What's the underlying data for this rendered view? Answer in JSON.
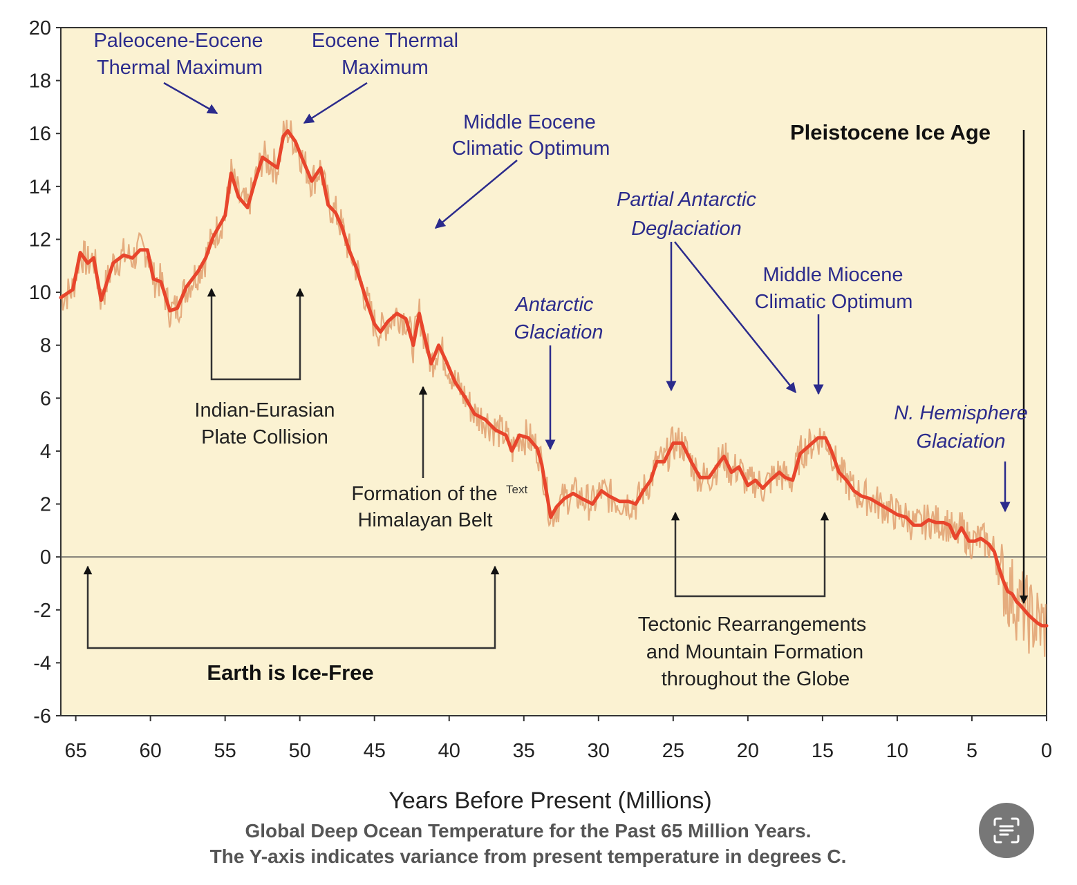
{
  "chart_data": {
    "type": "line",
    "title": "Global Deep Ocean Temperature for the Past 65 Million Years.",
    "subtitle": "The Y-axis indicates variance from present temperature in degrees C.",
    "xlabel": "Years Before Present (Millions)",
    "ylabel": "",
    "xlim": [
      66,
      0
    ],
    "ylim": [
      -6,
      20
    ],
    "x_reversed": true,
    "grid": false,
    "x_ticks": [
      65,
      60,
      55,
      50,
      45,
      40,
      35,
      30,
      25,
      20,
      15,
      10,
      5,
      0
    ],
    "y_ticks": [
      20,
      18,
      16,
      14,
      12,
      10,
      8,
      6,
      4,
      2,
      0,
      -2,
      -4,
      -6
    ],
    "colors": {
      "smoothed": "#e8452c",
      "raw": "#e0a070",
      "plot_background": "#fbf2d2",
      "annotation_blue": "#2b2b8c"
    },
    "series": [
      {
        "style": "smoothed",
        "x": [
          66,
          65.2,
          64.7,
          64.2,
          63.8,
          63.3,
          62.5,
          61.8,
          61.2,
          60.7,
          60.2,
          59.8,
          59.3,
          58.7,
          58.2,
          57.6,
          56.8,
          56.3,
          55.8,
          55.4,
          55,
          54.6,
          54.1,
          53.5,
          53,
          52.5,
          52,
          51.5,
          51.1,
          50.8,
          50.3,
          49.8,
          49.2,
          48.6,
          48.1,
          47.6,
          47.2,
          46.7,
          46.2,
          45.6,
          45,
          44.6,
          44.1,
          43.5,
          42.9,
          42.4,
          42,
          41.6,
          41.2,
          40.7,
          40.2,
          39.6,
          38.9,
          38.3,
          37.6,
          36.9,
          36.2,
          35.8,
          35.3,
          34.7,
          34.1,
          33.8,
          33.5,
          33.2,
          32.8,
          32.3,
          31.7,
          31.1,
          30.4,
          29.8,
          29.3,
          28.6,
          28,
          27.5,
          27,
          26.5,
          26.1,
          25.6,
          25,
          24.4,
          23.8,
          23.2,
          22.6,
          22,
          21.6,
          21.1,
          20.6,
          20,
          19.5,
          19,
          18.5,
          17.9,
          17.5,
          17,
          16.5,
          15.9,
          15.3,
          14.8,
          14.4,
          13.9,
          13.4,
          12.9,
          12.4,
          11.8,
          11.2,
          10.6,
          10,
          9.4,
          8.9,
          8.4,
          7.9,
          7.4,
          6.9,
          6.5,
          6.1,
          5.7,
          5.2,
          4.8,
          4.4,
          3.9,
          3.5,
          3.2,
          2.9,
          2.6,
          2.3,
          2,
          1.8,
          1.5,
          1.2,
          1,
          0.6,
          0.3,
          0
        ],
        "y": [
          9.8,
          10.1,
          11.5,
          11.1,
          11.3,
          9.7,
          11.1,
          11.4,
          11.3,
          11.6,
          11.6,
          10.5,
          10.4,
          9.3,
          9.4,
          10.2,
          10.8,
          11.3,
          12.1,
          12.5,
          12.9,
          14.5,
          13.6,
          13.2,
          14.2,
          15.1,
          14.9,
          14.7,
          15.9,
          16.1,
          15.7,
          15,
          14.2,
          14.7,
          13.3,
          13,
          12.5,
          11.6,
          10.9,
          9.8,
          8.8,
          8.5,
          8.9,
          9.2,
          9,
          8,
          9.2,
          8.2,
          7.3,
          8,
          7.4,
          6.6,
          6,
          5.4,
          5.2,
          4.8,
          4.6,
          4,
          4.6,
          4.5,
          4.1,
          3.5,
          2.5,
          1.5,
          1.9,
          2.2,
          2.4,
          2.2,
          2,
          2.5,
          2.3,
          2.1,
          2.1,
          2,
          2.5,
          2.9,
          3.6,
          3.6,
          4.3,
          4.3,
          3.6,
          3,
          3,
          3.5,
          3.8,
          3.2,
          3.4,
          2.7,
          2.9,
          2.6,
          2.9,
          3.2,
          3,
          2.9,
          3.9,
          4.2,
          4.5,
          4.5,
          4,
          3.2,
          2.9,
          2.5,
          2.3,
          2.2,
          2,
          1.8,
          1.6,
          1.5,
          1.2,
          1.2,
          1.4,
          1.3,
          1.3,
          1.2,
          0.7,
          1.1,
          0.6,
          0.6,
          0.7,
          0.5,
          0.2,
          -0.4,
          -0.9,
          -1.3,
          -1.4,
          -1.7,
          -1.8,
          -2,
          -2.2,
          -2.3,
          -2.5,
          -2.6,
          -2.6
        ]
      }
    ]
  },
  "annotations": {
    "petm": [
      "Paleocene-Eocene",
      "Thermal Maximum"
    ],
    "etm": [
      "Eocene Thermal",
      "Maximum"
    ],
    "meco": [
      "Middle Eocene",
      "Climatic Optimum"
    ],
    "pleistocene": "Pleistocene Ice Age",
    "partial_antarctic": [
      "Partial Antarctic",
      "Deglaciation"
    ],
    "mmco": [
      "Middle Miocene",
      "Climatic Optimum"
    ],
    "antarctic_glaciation": [
      "Antarctic",
      "Glaciation"
    ],
    "nh_glaciation": [
      "N. Hemisphere",
      "Glaciation"
    ],
    "indian_eurasian": [
      "Indian-Eurasian",
      "Plate Collision"
    ],
    "himalayan": [
      "Formation of the",
      "Himalayan Belt"
    ],
    "text_stub": "Text",
    "tectonic": [
      "Tectonic Rearrangements",
      "and Mountain Formation",
      "throughout the Globe"
    ],
    "ice_free": "Earth is Ice-Free"
  },
  "icons": {
    "scan": "text-scan-icon"
  }
}
